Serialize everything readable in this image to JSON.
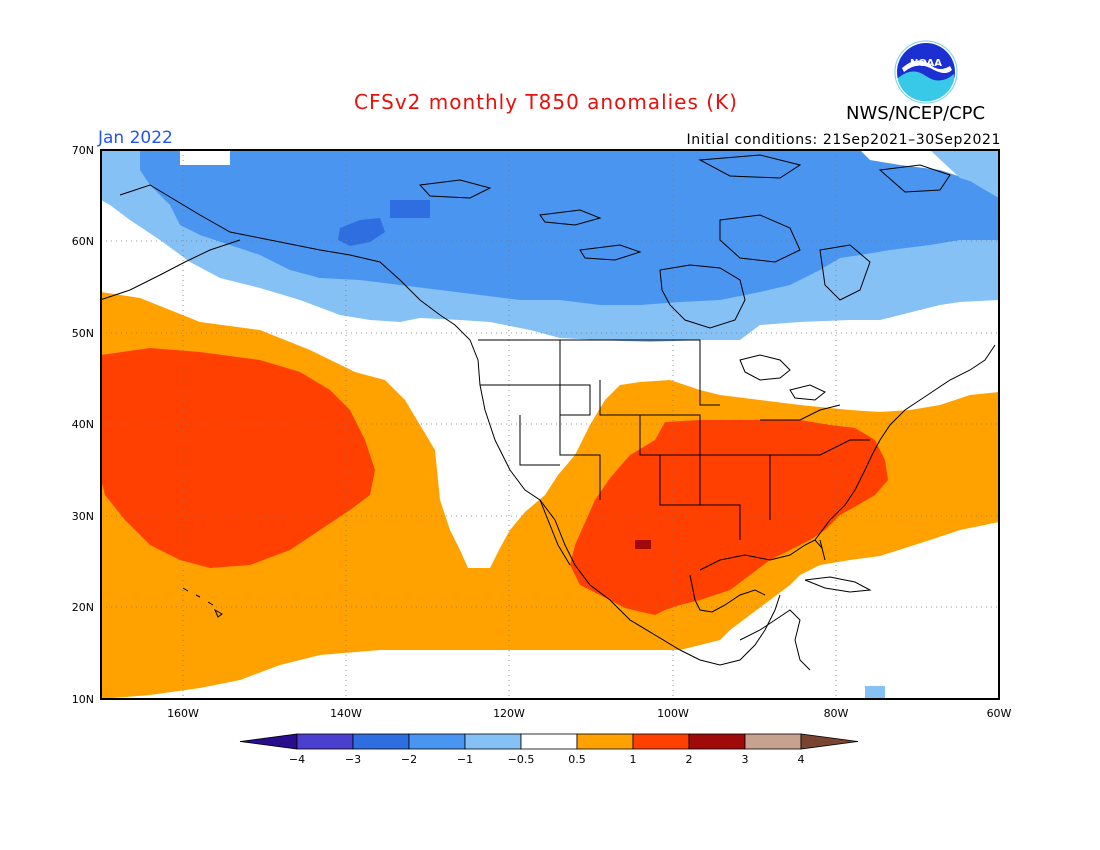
{
  "title": "CFSv2 monthly T850 anomalies (K)",
  "org": "NWS/NCEP/CPC",
  "month": "Jan 2022",
  "initial_conditions": "Initial conditions: 21Sep2021–30Sep2021",
  "logo_text": "NOAA",
  "lat_labels": [
    "70N",
    "60N",
    "50N",
    "40N",
    "30N",
    "20N",
    "10N"
  ],
  "lon_labels": [
    "160W",
    "140W",
    "120W",
    "100W",
    "80W",
    "60W"
  ],
  "colorbar": {
    "ticks": [
      "−4",
      "−3",
      "−2",
      "−1",
      "−0.5",
      "0.5",
      "1",
      "2",
      "3",
      "4"
    ],
    "colors": [
      "#2a0d8c",
      "#4b3fcf",
      "#2f6ee0",
      "#4a95f0",
      "#86c1f6",
      "#ffffff",
      "#ffa200",
      "#ff4000",
      "#a00a0a",
      "#c8a290",
      "#7a4530"
    ]
  },
  "colors": {
    "title": "#e8100c",
    "month": "#2255ee"
  }
}
